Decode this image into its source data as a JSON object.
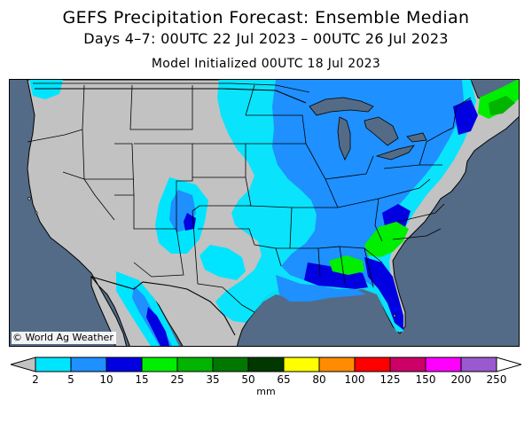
{
  "header": {
    "title": "GEFS Precipitation Forecast: Ensemble Median",
    "subtitle": "Days 4–7: 00UTC 22 Jul 2023 – 00UTC 26 Jul 2023",
    "init": "Model Initialized 00UTC 18 Jul 2023"
  },
  "map": {
    "region": "Continental United States",
    "credit": "© World Ag Weather",
    "colors": {
      "ocean": "#536b86",
      "land": "#c2c2c2",
      "great_lakes": "#536b86",
      "borders": "#000000"
    }
  },
  "legend": {
    "units": "mm",
    "low_arrow_color": "#c2c2c2",
    "levels": [
      "2",
      "5",
      "10",
      "15",
      "25",
      "35",
      "50",
      "65",
      "80",
      "100",
      "125",
      "150",
      "200",
      "250"
    ],
    "bins": [
      {
        "from": "2",
        "to": "5",
        "color": "#00e5ff"
      },
      {
        "from": "5",
        "to": "10",
        "color": "#1e90ff"
      },
      {
        "from": "10",
        "to": "15",
        "color": "#0000e0"
      },
      {
        "from": "15",
        "to": "25",
        "color": "#00ee00"
      },
      {
        "from": "25",
        "to": "35",
        "color": "#00b400"
      },
      {
        "from": "35",
        "to": "50",
        "color": "#007800"
      },
      {
        "from": "50",
        "to": "65",
        "color": "#003800"
      },
      {
        "from": "65",
        "to": "80",
        "color": "#ffff00"
      },
      {
        "from": "80",
        "to": "100",
        "color": "#ff8c00"
      },
      {
        "from": "100",
        "to": "125",
        "color": "#ff0000"
      },
      {
        "from": "125",
        "to": "150",
        "color": "#cc0066"
      },
      {
        "from": "150",
        "to": "200",
        "color": "#ff00ff"
      },
      {
        "from": "200",
        "to": "250",
        "color": "#9b59d0"
      }
    ]
  }
}
